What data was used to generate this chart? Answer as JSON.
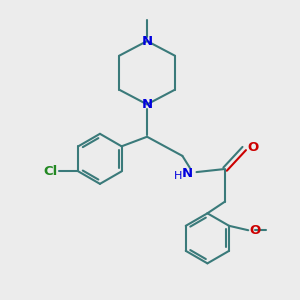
{
  "bg_color": "#ececec",
  "bond_color": "#3a7a7a",
  "N_color": "#0000dd",
  "O_color": "#cc0000",
  "Cl_color": "#228822",
  "lw": 1.5,
  "figsize": [
    3.0,
    3.0
  ],
  "dpi": 100,
  "xlim": [
    0,
    10
  ],
  "ylim": [
    0,
    10
  ]
}
